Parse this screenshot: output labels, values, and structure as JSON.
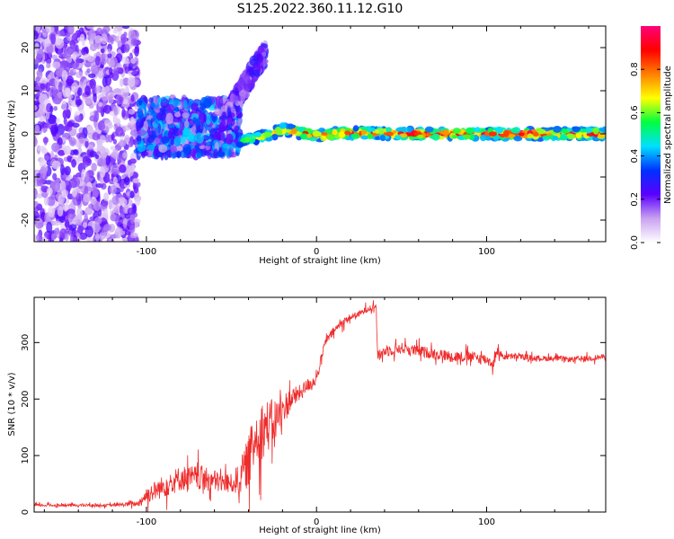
{
  "title": "S125.2022.360.11.12.G10",
  "chart_data": [
    {
      "type": "heatmap",
      "xlabel": "Height of straight line (km)",
      "ylabel": "Frequency (Hz)",
      "xlim": [
        -166,
        170
      ],
      "ylim": [
        -25,
        25
      ],
      "xticks": [
        -100,
        0,
        100
      ],
      "xtick_labels": [
        "-100",
        "0",
        "100"
      ],
      "yticks": [
        -20,
        -10,
        0,
        10,
        20
      ],
      "ytick_labels": [
        "-20",
        "-10",
        "0",
        "10",
        "20"
      ],
      "colorbar": {
        "label": "Normalized spectral amplitude",
        "range": [
          0.0,
          1.0
        ],
        "ticks": [
          0.0,
          0.2,
          0.4,
          0.6,
          0.8
        ],
        "tick_labels": [
          "0.0",
          "0.2",
          "0.4",
          "0.6",
          "0.8"
        ],
        "colormap": [
          "#ffffff",
          "#c9a2f0",
          "#5a00ff",
          "#0030ff",
          "#00e0ff",
          "#00ff40",
          "#ffff00",
          "#ff8000",
          "#ff0000",
          "#ff007a"
        ]
      },
      "regions": [
        {
          "x_range": [
            -166,
            -105
          ],
          "freq_range": [
            -25,
            25
          ],
          "amplitude": [
            0.05,
            0.25
          ],
          "description": "diffuse scattered signal"
        },
        {
          "x_range": [
            -105,
            -45
          ],
          "freq_range": [
            -5,
            8
          ],
          "amplitude": [
            0.1,
            0.45
          ]
        },
        {
          "x_range": [
            -55,
            -30
          ],
          "freq_range": [
            3,
            20
          ],
          "amplitude": [
            0.1,
            0.3
          ]
        },
        {
          "x_range": [
            -45,
            170
          ],
          "freq_range": [
            -1.5,
            1.5
          ],
          "amplitude": [
            0.3,
            1.0
          ]
        }
      ],
      "ridge": [
        {
          "x": -45,
          "freq": -1.5
        },
        {
          "x": -30,
          "freq": -0.5
        },
        {
          "x": -20,
          "freq": 1.0
        },
        {
          "x": -10,
          "freq": 0.3
        },
        {
          "x": 0,
          "freq": -0.5
        },
        {
          "x": 15,
          "freq": 0.2
        },
        {
          "x": 60,
          "freq": 0.0
        },
        {
          "x": 120,
          "freq": 0.0
        },
        {
          "x": 170,
          "freq": 0.0
        }
      ],
      "grid": false
    },
    {
      "type": "line",
      "xlabel": "Height of straight line (km)",
      "ylabel": "SNR (10 * v/v)",
      "xlim": [
        -166,
        170
      ],
      "ylim": [
        0,
        380
      ],
      "xticks": [
        -100,
        0,
        100
      ],
      "xtick_labels": [
        "-100",
        "0",
        "100"
      ],
      "yticks": [
        0,
        100,
        200,
        300
      ],
      "ytick_labels": [
        "0",
        "100",
        "200",
        "300"
      ],
      "line_color": "#ef2b2b",
      "series": [
        {
          "x": [
            -166,
            -140,
            -120,
            -105,
            -100,
            -90,
            -80,
            -70,
            -60,
            -50,
            -45,
            -40,
            -35,
            -30,
            -25,
            -20,
            -15,
            -10,
            -5,
            0,
            5,
            10,
            15,
            20,
            25,
            30,
            35,
            36,
            40,
            50,
            60,
            70,
            80,
            90,
            100,
            104,
            106,
            110,
            120,
            130,
            140,
            150,
            160,
            170
          ],
          "y": [
            12,
            12,
            12,
            15,
            30,
            45,
            60,
            60,
            55,
            50,
            60,
            90,
            140,
            150,
            160,
            180,
            200,
            210,
            225,
            235,
            300,
            320,
            335,
            345,
            350,
            360,
            365,
            275,
            285,
            290,
            285,
            280,
            275,
            275,
            270,
            262,
            285,
            275,
            275,
            272,
            272,
            270,
            272,
            275
          ],
          "noise_amplitude": [
            5,
            5,
            5,
            10,
            30,
            40,
            45,
            45,
            40,
            35,
            60,
            90,
            110,
            100,
            80,
            60,
            40,
            30,
            25,
            20,
            15,
            15,
            15,
            12,
            12,
            12,
            12,
            20,
            20,
            20,
            20,
            20,
            20,
            20,
            20,
            20,
            15,
            12,
            10,
            10,
            10,
            10,
            10,
            10
          ]
        }
      ],
      "grid": false
    }
  ]
}
